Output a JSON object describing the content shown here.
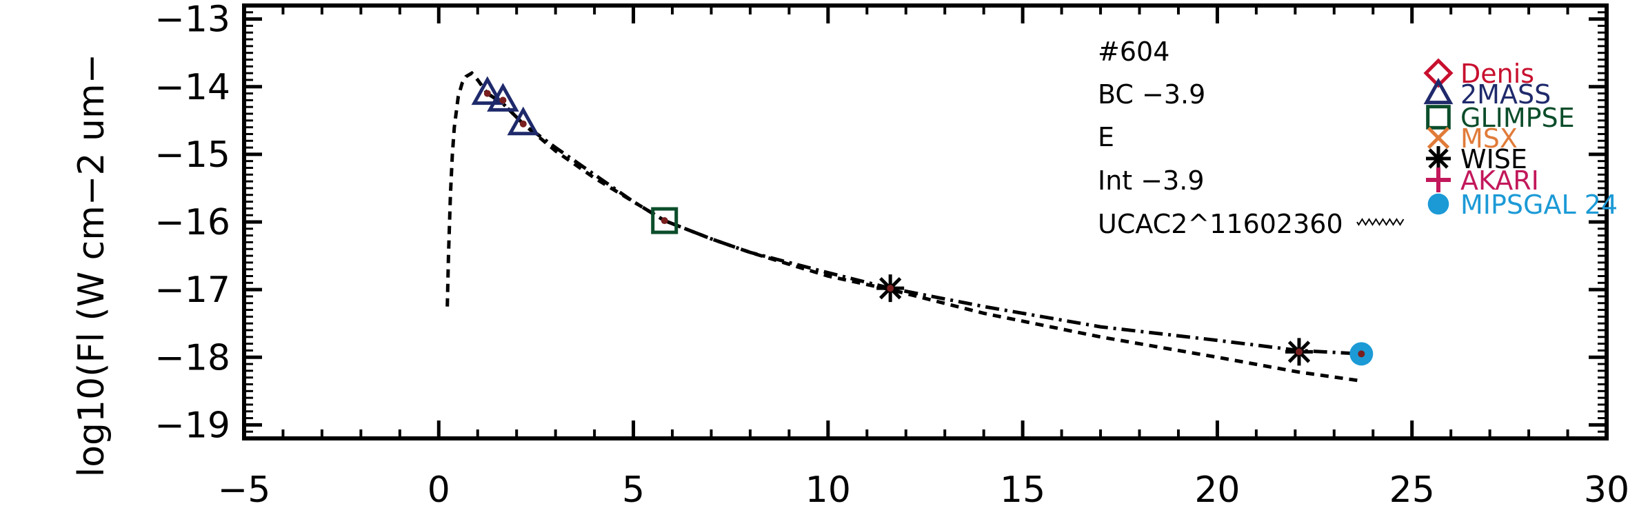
{
  "chart_data": {
    "type": "scatter",
    "title": "",
    "xlabel": "",
    "ylabel": "log10(Fl (W cm−2 um−",
    "xlim": [
      -5,
      30
    ],
    "ylim": [
      -19.2,
      -12.8
    ],
    "x_ticks": [
      "−5",
      "0",
      "5",
      "10",
      "15",
      "20",
      "25",
      "30"
    ],
    "x_tick_values": [
      -5,
      0,
      5,
      10,
      15,
      20,
      25,
      30
    ],
    "y_ticks": [
      "−13",
      "−14",
      "−15",
      "−16",
      "−17",
      "−18",
      "−19"
    ],
    "y_tick_values": [
      -13,
      -14,
      -15,
      -16,
      -17,
      -18,
      -19
    ],
    "annotations": [
      "#604",
      "BC −3.9",
      "E",
      "Int −3.9",
      "UCAC2^11602360"
    ],
    "legend": [
      {
        "name": "Denis",
        "color": "#c8102e",
        "marker": "diamond"
      },
      {
        "name": "2MASS",
        "color": "#1f2a6b",
        "marker": "triangle"
      },
      {
        "name": "GLIMPSE",
        "color": "#0b4d2a",
        "marker": "square"
      },
      {
        "name": "MSX",
        "color": "#e07b39",
        "marker": "x"
      },
      {
        "name": "WISE",
        "color": "#000000",
        "marker": "asterisk"
      },
      {
        "name": "AKARI",
        "color": "#c2185b",
        "marker": "plus"
      },
      {
        "name": "MIPSGAL 24",
        "color": "#1c9ad6",
        "marker": "circle"
      }
    ],
    "legend_position": "top-right",
    "series": [
      {
        "name": "2MASS",
        "marker": "triangle",
        "color": "#1f2a6b",
        "x": [
          1.25,
          1.65,
          2.17
        ],
        "y": [
          -14.1,
          -14.2,
          -14.55
        ]
      },
      {
        "name": "GLIMPSE",
        "marker": "square",
        "color": "#0b4d2a",
        "x": [
          5.8
        ],
        "y": [
          -15.98
        ]
      },
      {
        "name": "WISE",
        "marker": "asterisk",
        "color": "#000000",
        "x": [
          11.6,
          22.1
        ],
        "y": [
          -16.98,
          -17.92
        ]
      },
      {
        "name": "MIPSGAL 24",
        "marker": "circle",
        "color": "#1c9ad6",
        "x": [
          23.7
        ],
        "y": [
          -17.95
        ]
      }
    ],
    "model_curves": [
      {
        "style": "dashed",
        "x": [
          0.22,
          0.25,
          0.3,
          0.35,
          0.4,
          0.5,
          0.6,
          0.7,
          0.85,
          1.0,
          1.25,
          1.65,
          2.17,
          3.0,
          4.0,
          5.0,
          5.8,
          7.0,
          8.0,
          10.0,
          11.6,
          14.0,
          17.0,
          20.0,
          22.1,
          23.7
        ],
        "y": [
          -17.25,
          -16.5,
          -15.6,
          -15.0,
          -14.6,
          -14.15,
          -13.95,
          -13.85,
          -13.8,
          -13.9,
          -14.1,
          -14.25,
          -14.55,
          -14.95,
          -15.35,
          -15.7,
          -15.98,
          -16.25,
          -16.45,
          -16.8,
          -17.0,
          -17.35,
          -17.7,
          -18.0,
          -18.22,
          -18.35
        ]
      },
      {
        "style": "dash-dot",
        "x": [
          1.25,
          1.65,
          2.17,
          3.0,
          4.0,
          5.0,
          5.8,
          7.0,
          8.0,
          10.0,
          11.6,
          14.0,
          17.0,
          20.0,
          22.1,
          23.7
        ],
        "y": [
          -14.1,
          -14.25,
          -14.55,
          -14.9,
          -15.3,
          -15.7,
          -15.98,
          -16.25,
          -16.45,
          -16.75,
          -16.98,
          -17.25,
          -17.55,
          -17.75,
          -17.9,
          -17.95
        ]
      }
    ],
    "fit_points": {
      "color": "#7a1f1f",
      "x": [
        1.25,
        1.65,
        2.17,
        5.8,
        11.6,
        22.1,
        23.7
      ],
      "y": [
        -14.1,
        -14.2,
        -14.55,
        -15.98,
        -16.98,
        -17.92,
        -17.95
      ]
    },
    "grid": false
  }
}
